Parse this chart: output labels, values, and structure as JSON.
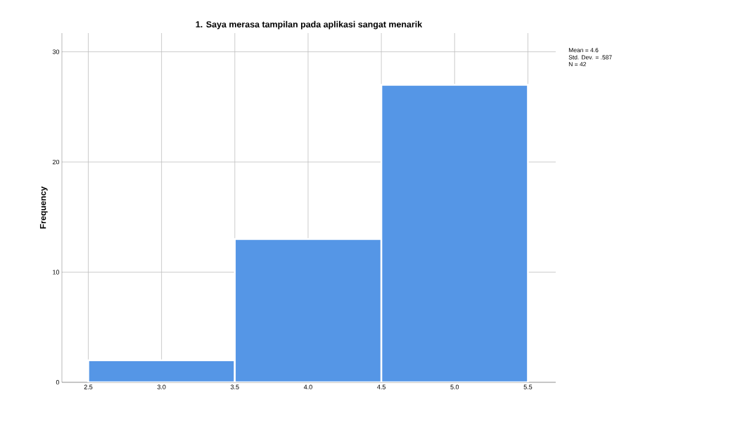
{
  "chart_data": {
    "type": "histogram",
    "title": "1. Saya merasa tampilan pada aplikasi sangat menarik",
    "ylabel": "Frequency",
    "bins": [
      2.5,
      3.5,
      4.5,
      5.5
    ],
    "values": [
      2,
      13,
      27
    ],
    "color": "#5596e6",
    "xlim": [
      2.32,
      5.69
    ],
    "ylim": [
      0,
      31.7
    ],
    "xticks": [
      {
        "value": 2.5,
        "label": "2.5"
      },
      {
        "value": 3.0,
        "label": "3.0"
      },
      {
        "value": 3.5,
        "label": "3.5"
      },
      {
        "value": 4.0,
        "label": "4.0"
      },
      {
        "value": 4.5,
        "label": "4.5"
      },
      {
        "value": 5.0,
        "label": "5.0"
      },
      {
        "value": 5.5,
        "label": "5.5"
      }
    ],
    "yticks": [
      0,
      10,
      20,
      30
    ],
    "grid": true,
    "annotations": [
      "Mean = 4.6",
      "Std. Dev. = .587",
      "N = 42"
    ]
  }
}
